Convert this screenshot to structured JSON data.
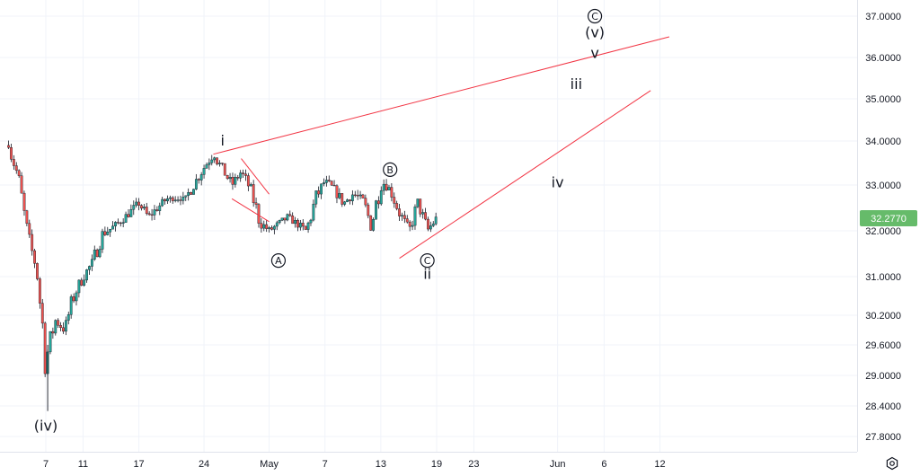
{
  "colors": {
    "up": "#26a69a",
    "down": "#ef5350",
    "wick": "#131722",
    "trendline": "#f23645",
    "price_badge": "#66bb6a",
    "text": "#131722"
  },
  "price_badge": "32.2770",
  "chart_data": {
    "type": "candlestick",
    "y_tick_labels": [
      "37.0000",
      "36.0000",
      "35.0000",
      "34.0000",
      "33.0000",
      "32.0000",
      "31.0000",
      "30.2000",
      "29.6000",
      "29.0000",
      "28.4000",
      "27.8000"
    ],
    "x_tick_labels": [
      "7",
      "11",
      "17",
      "24",
      "May",
      "7",
      "13",
      "19",
      "23",
      "Jun",
      "6",
      "12"
    ],
    "grid": true,
    "price_path": [
      [
        "Apr 3",
        33.9
      ],
      [
        "Apr 4",
        33.2
      ],
      [
        "Apr 5",
        31.9
      ],
      [
        "Apr 6",
        31.2
      ],
      [
        "Apr 7",
        29.3
      ],
      [
        "Apr 8",
        30.1
      ],
      [
        "Apr 9",
        29.9
      ],
      [
        "Apr 10",
        30.6
      ],
      [
        "Apr 11",
        31.0
      ],
      [
        "Apr 12",
        31.3
      ],
      [
        "Apr 13",
        31.9
      ],
      [
        "Apr 15",
        32.2
      ],
      [
        "Apr 17",
        32.6
      ],
      [
        "Apr 18",
        32.3
      ],
      [
        "Apr 20",
        32.7
      ],
      [
        "Apr 22",
        32.7
      ],
      [
        "Apr 24",
        33.4
      ],
      [
        "Apr 25",
        33.7
      ],
      [
        "Apr 27",
        33.0
      ],
      [
        "Apr 28",
        33.3
      ],
      [
        "Apr 29",
        32.9
      ],
      [
        "Apr 30",
        32.2
      ],
      [
        "May 1",
        32.0
      ],
      [
        "May 3",
        32.3
      ],
      [
        "May 5",
        32.0
      ],
      [
        "May 6",
        32.7
      ],
      [
        "May 7",
        33.1
      ],
      [
        "May 8",
        32.9
      ],
      [
        "May 9",
        32.6
      ],
      [
        "May 10",
        32.8
      ],
      [
        "May 11",
        32.7
      ],
      [
        "May 12",
        32.1
      ],
      [
        "May 13",
        33.1
      ],
      [
        "May 14",
        32.9
      ],
      [
        "May 15",
        32.4
      ],
      [
        "May 16",
        32.0
      ],
      [
        "May 17",
        32.6
      ],
      [
        "May 18",
        32.0
      ],
      [
        "May 19",
        32.28
      ]
    ],
    "wave_labels": [
      {
        "text": "(iv)",
        "circled": false
      },
      {
        "text": "i",
        "circled": false
      },
      {
        "text": "A",
        "circled": true
      },
      {
        "text": "B",
        "circled": true
      },
      {
        "text": "C",
        "circled": true
      },
      {
        "text": "ii",
        "circled": false
      },
      {
        "text": "iii",
        "circled": false
      },
      {
        "text": "iv",
        "circled": false
      },
      {
        "text": "v",
        "circled": false
      },
      {
        "text": "(v)",
        "circled": false
      },
      {
        "text": "C",
        "circled": true
      }
    ]
  },
  "settings_icon": "settings-icon"
}
